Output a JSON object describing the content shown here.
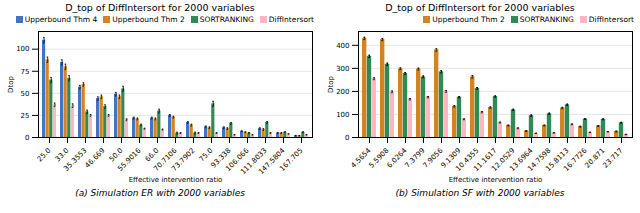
{
  "chart_data": [
    {
      "type": "bar",
      "title": "D_top of DiffIntersort for 2000 variables",
      "xlabel": "Effective intervention ratio",
      "ylabel": "Dtop",
      "caption": "(a) Simulation ER with 2000 variables",
      "categories": [
        "25.0",
        "33.0",
        "35.3553",
        "46.669",
        "50.0",
        "55.9016",
        "66.0",
        "70.7106",
        "73.7902",
        "75.0",
        "93.338",
        "106.066",
        "111.8033",
        "147.5804",
        "167.705"
      ],
      "series": [
        {
          "name": "Upperbound Thm 4",
          "color": "#4472c4",
          "values": [
            110,
            85,
            57,
            44,
            49,
            22,
            22,
            25,
            17,
            12,
            11,
            7,
            10,
            5,
            2
          ],
          "errors": [
            3,
            3,
            2,
            2,
            2,
            1,
            1,
            1,
            1,
            1,
            1,
            0.5,
            1,
            0.5,
            0.3
          ]
        },
        {
          "name": "Upperbound Thm 2",
          "color": "#d4841e",
          "values": [
            88,
            80,
            60,
            46,
            46,
            21,
            21,
            23,
            14,
            11,
            10,
            6,
            9,
            5,
            2
          ],
          "errors": [
            3,
            3,
            2,
            2,
            2,
            1,
            1,
            1,
            1,
            1,
            1,
            0.5,
            1,
            0.5,
            0.3
          ]
        },
        {
          "name": "SORTRANKING",
          "color": "#2e8b57",
          "values": [
            65,
            67,
            29,
            35,
            55,
            14,
            30,
            5,
            5,
            38,
            16,
            5,
            17,
            6,
            6
          ],
          "errors": [
            3,
            3,
            2,
            2,
            3,
            1,
            2,
            1,
            1,
            3,
            1,
            0.5,
            1,
            0.5,
            0.5
          ]
        },
        {
          "name": "DiffIntersort",
          "color": "#ffb6c1",
          "values": [
            37,
            36,
            25,
            25,
            20,
            10,
            9,
            5,
            5,
            5,
            3,
            3,
            5,
            4,
            3
          ],
          "errors": [
            2,
            2,
            1,
            1,
            1,
            0.5,
            0.5,
            0.5,
            0.5,
            0.5,
            0.3,
            0.3,
            0.5,
            0.3,
            0.3
          ]
        }
      ],
      "ylim": [
        0,
        120
      ],
      "yticks": [
        0,
        25,
        50,
        75,
        100
      ],
      "grid": true,
      "legend": "upper right"
    },
    {
      "type": "bar",
      "title": "D_top of DiffIntersort for 2000 variables",
      "xlabel": "Effective intervention ratio",
      "ylabel": "Dtop",
      "caption": "(b) Simulation SF with 2000 variables",
      "categories": [
        "4.5654",
        "5.5908",
        "6.0264",
        "7.3799",
        "7.9056",
        "9.1309",
        "10.4355",
        "11.1617",
        "12.0529",
        "13.6964",
        "14.7598",
        "15.8113",
        "16.7726",
        "20.871",
        "23.717"
      ],
      "series": [
        {
          "name": "Upperbound Thm 2",
          "color": "#d4841e",
          "values": [
            430,
            425,
            298,
            297,
            380,
            135,
            263,
            130,
            52,
            28,
            52,
            128,
            47,
            50,
            26
          ],
          "errors": [
            5,
            5,
            4,
            4,
            5,
            3,
            5,
            3,
            2,
            2,
            2,
            3,
            2,
            2,
            2
          ]
        },
        {
          "name": "SORTRANKING",
          "color": "#2e8b57",
          "values": [
            352,
            318,
            278,
            263,
            285,
            175,
            213,
            178,
            120,
            95,
            103,
            142,
            80,
            79,
            64
          ],
          "errors": [
            5,
            5,
            4,
            4,
            5,
            3,
            4,
            3,
            3,
            3,
            3,
            3,
            2,
            2,
            2
          ]
        },
        {
          "name": "DiffIntersort",
          "color": "#ffb6c1",
          "values": [
            255,
            198,
            166,
            175,
            200,
            79,
            110,
            65,
            40,
            18,
            20,
            57,
            22,
            25,
            13
          ],
          "errors": [
            4,
            4,
            3,
            3,
            4,
            2,
            3,
            2,
            2,
            1,
            1,
            2,
            1,
            1,
            1
          ]
        }
      ],
      "ylim": [
        0,
        460
      ],
      "yticks": [
        0,
        100,
        200,
        300,
        400
      ],
      "grid": true,
      "legend": "upper right"
    }
  ]
}
